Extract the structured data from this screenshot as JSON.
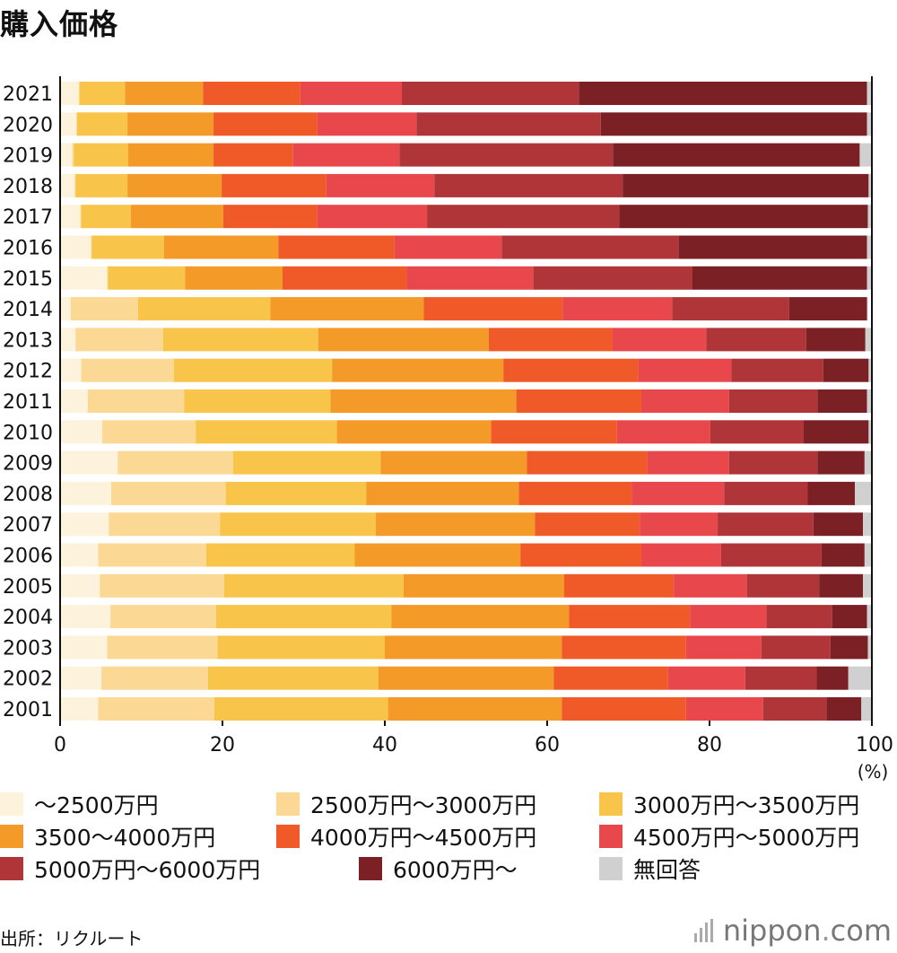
{
  "title": "購入価格",
  "source": "出所：リクルート",
  "logo": {
    "name": "nippon",
    "tld": "com",
    "dot": "."
  },
  "chart_data": {
    "type": "bar",
    "orientation": "horizontal",
    "stacked": true,
    "unit_label": "(%)",
    "xlim": [
      0,
      100
    ],
    "xticks": [
      "0",
      "20",
      "40",
      "60",
      "80",
      "100"
    ],
    "categories": [
      "2021",
      "2020",
      "2019",
      "2018",
      "2017",
      "2016",
      "2015",
      "2014",
      "2013",
      "2012",
      "2011",
      "2010",
      "2009",
      "2008",
      "2007",
      "2006",
      "2005",
      "2004",
      "2003",
      "2002",
      "2001"
    ],
    "series": [
      {
        "name": "～2500万円",
        "color": "#fdf3dc",
        "values": [
          2.3,
          2.0,
          1.5,
          1.8,
          2.5,
          3.8,
          5.8,
          1.3,
          1.9,
          2.6,
          3.4,
          5.2,
          7.1,
          6.3,
          6.0,
          4.7,
          4.9,
          6.2,
          5.8,
          5.1,
          4.7
        ]
      },
      {
        "name": "2500万円～3000万円",
        "color": "#fbd894",
        "values": [
          0.1,
          0.1,
          0.2,
          0.1,
          0.1,
          0.1,
          0.1,
          8.3,
          10.8,
          11.4,
          11.9,
          11.5,
          14.2,
          14.1,
          13.7,
          13.3,
          15.3,
          13.0,
          13.6,
          13.1,
          14.3
        ]
      },
      {
        "name": "3000万円～3500万円",
        "color": "#f8c44a",
        "values": [
          5.6,
          6.2,
          6.7,
          6.4,
          6.1,
          8.9,
          9.5,
          16.3,
          19.1,
          19.5,
          18.0,
          17.4,
          18.2,
          17.3,
          19.2,
          18.3,
          22.1,
          21.6,
          20.6,
          21.0,
          21.4
        ]
      },
      {
        "name": "3500～4000万円",
        "color": "#f39a28",
        "values": [
          9.6,
          10.6,
          10.5,
          11.6,
          11.4,
          14.1,
          12.0,
          18.9,
          21.0,
          21.1,
          22.9,
          19.0,
          18.0,
          18.8,
          19.6,
          20.4,
          19.8,
          21.9,
          21.8,
          21.6,
          21.4
        ]
      },
      {
        "name": "4000万円～4500万円",
        "color": "#f05a28",
        "values": [
          12.0,
          12.8,
          9.8,
          12.9,
          11.6,
          14.3,
          15.3,
          17.1,
          15.2,
          16.6,
          15.4,
          15.5,
          14.8,
          13.9,
          12.9,
          14.9,
          13.5,
          14.9,
          15.3,
          14.1,
          15.3
        ]
      },
      {
        "name": "4500万円～5000万円",
        "color": "#e8474c",
        "values": [
          12.5,
          12.2,
          13.1,
          13.3,
          13.5,
          13.2,
          15.6,
          13.5,
          11.6,
          11.5,
          10.8,
          11.5,
          10.1,
          11.4,
          9.6,
          9.8,
          9.0,
          9.4,
          9.3,
          9.5,
          9.5
        ]
      },
      {
        "name": "5000万円～6000万円",
        "color": "#b03538",
        "values": [
          21.8,
          22.7,
          26.3,
          23.2,
          23.7,
          21.8,
          19.6,
          14.4,
          12.3,
          11.3,
          10.9,
          11.5,
          10.9,
          10.3,
          11.8,
          12.4,
          8.9,
          8.1,
          8.5,
          8.8,
          7.8
        ]
      },
      {
        "name": "6000万円～",
        "color": "#7b2126",
        "values": [
          35.5,
          32.8,
          30.4,
          30.3,
          30.6,
          23.2,
          21.5,
          9.6,
          7.3,
          5.6,
          6.1,
          8.0,
          5.8,
          5.8,
          6.1,
          5.3,
          5.4,
          4.3,
          4.6,
          3.9,
          4.3
        ]
      },
      {
        "name": "無回答",
        "color": "#d0d0d0",
        "values": [
          0.6,
          0.6,
          1.5,
          0.4,
          0.5,
          0.6,
          0.6,
          0.1,
          0.8,
          0.4,
          0.6,
          0.4,
          0.9,
          2.1,
          1.1,
          0.9,
          1.1,
          0.6,
          0.5,
          2.9,
          1.3
        ]
      }
    ]
  }
}
